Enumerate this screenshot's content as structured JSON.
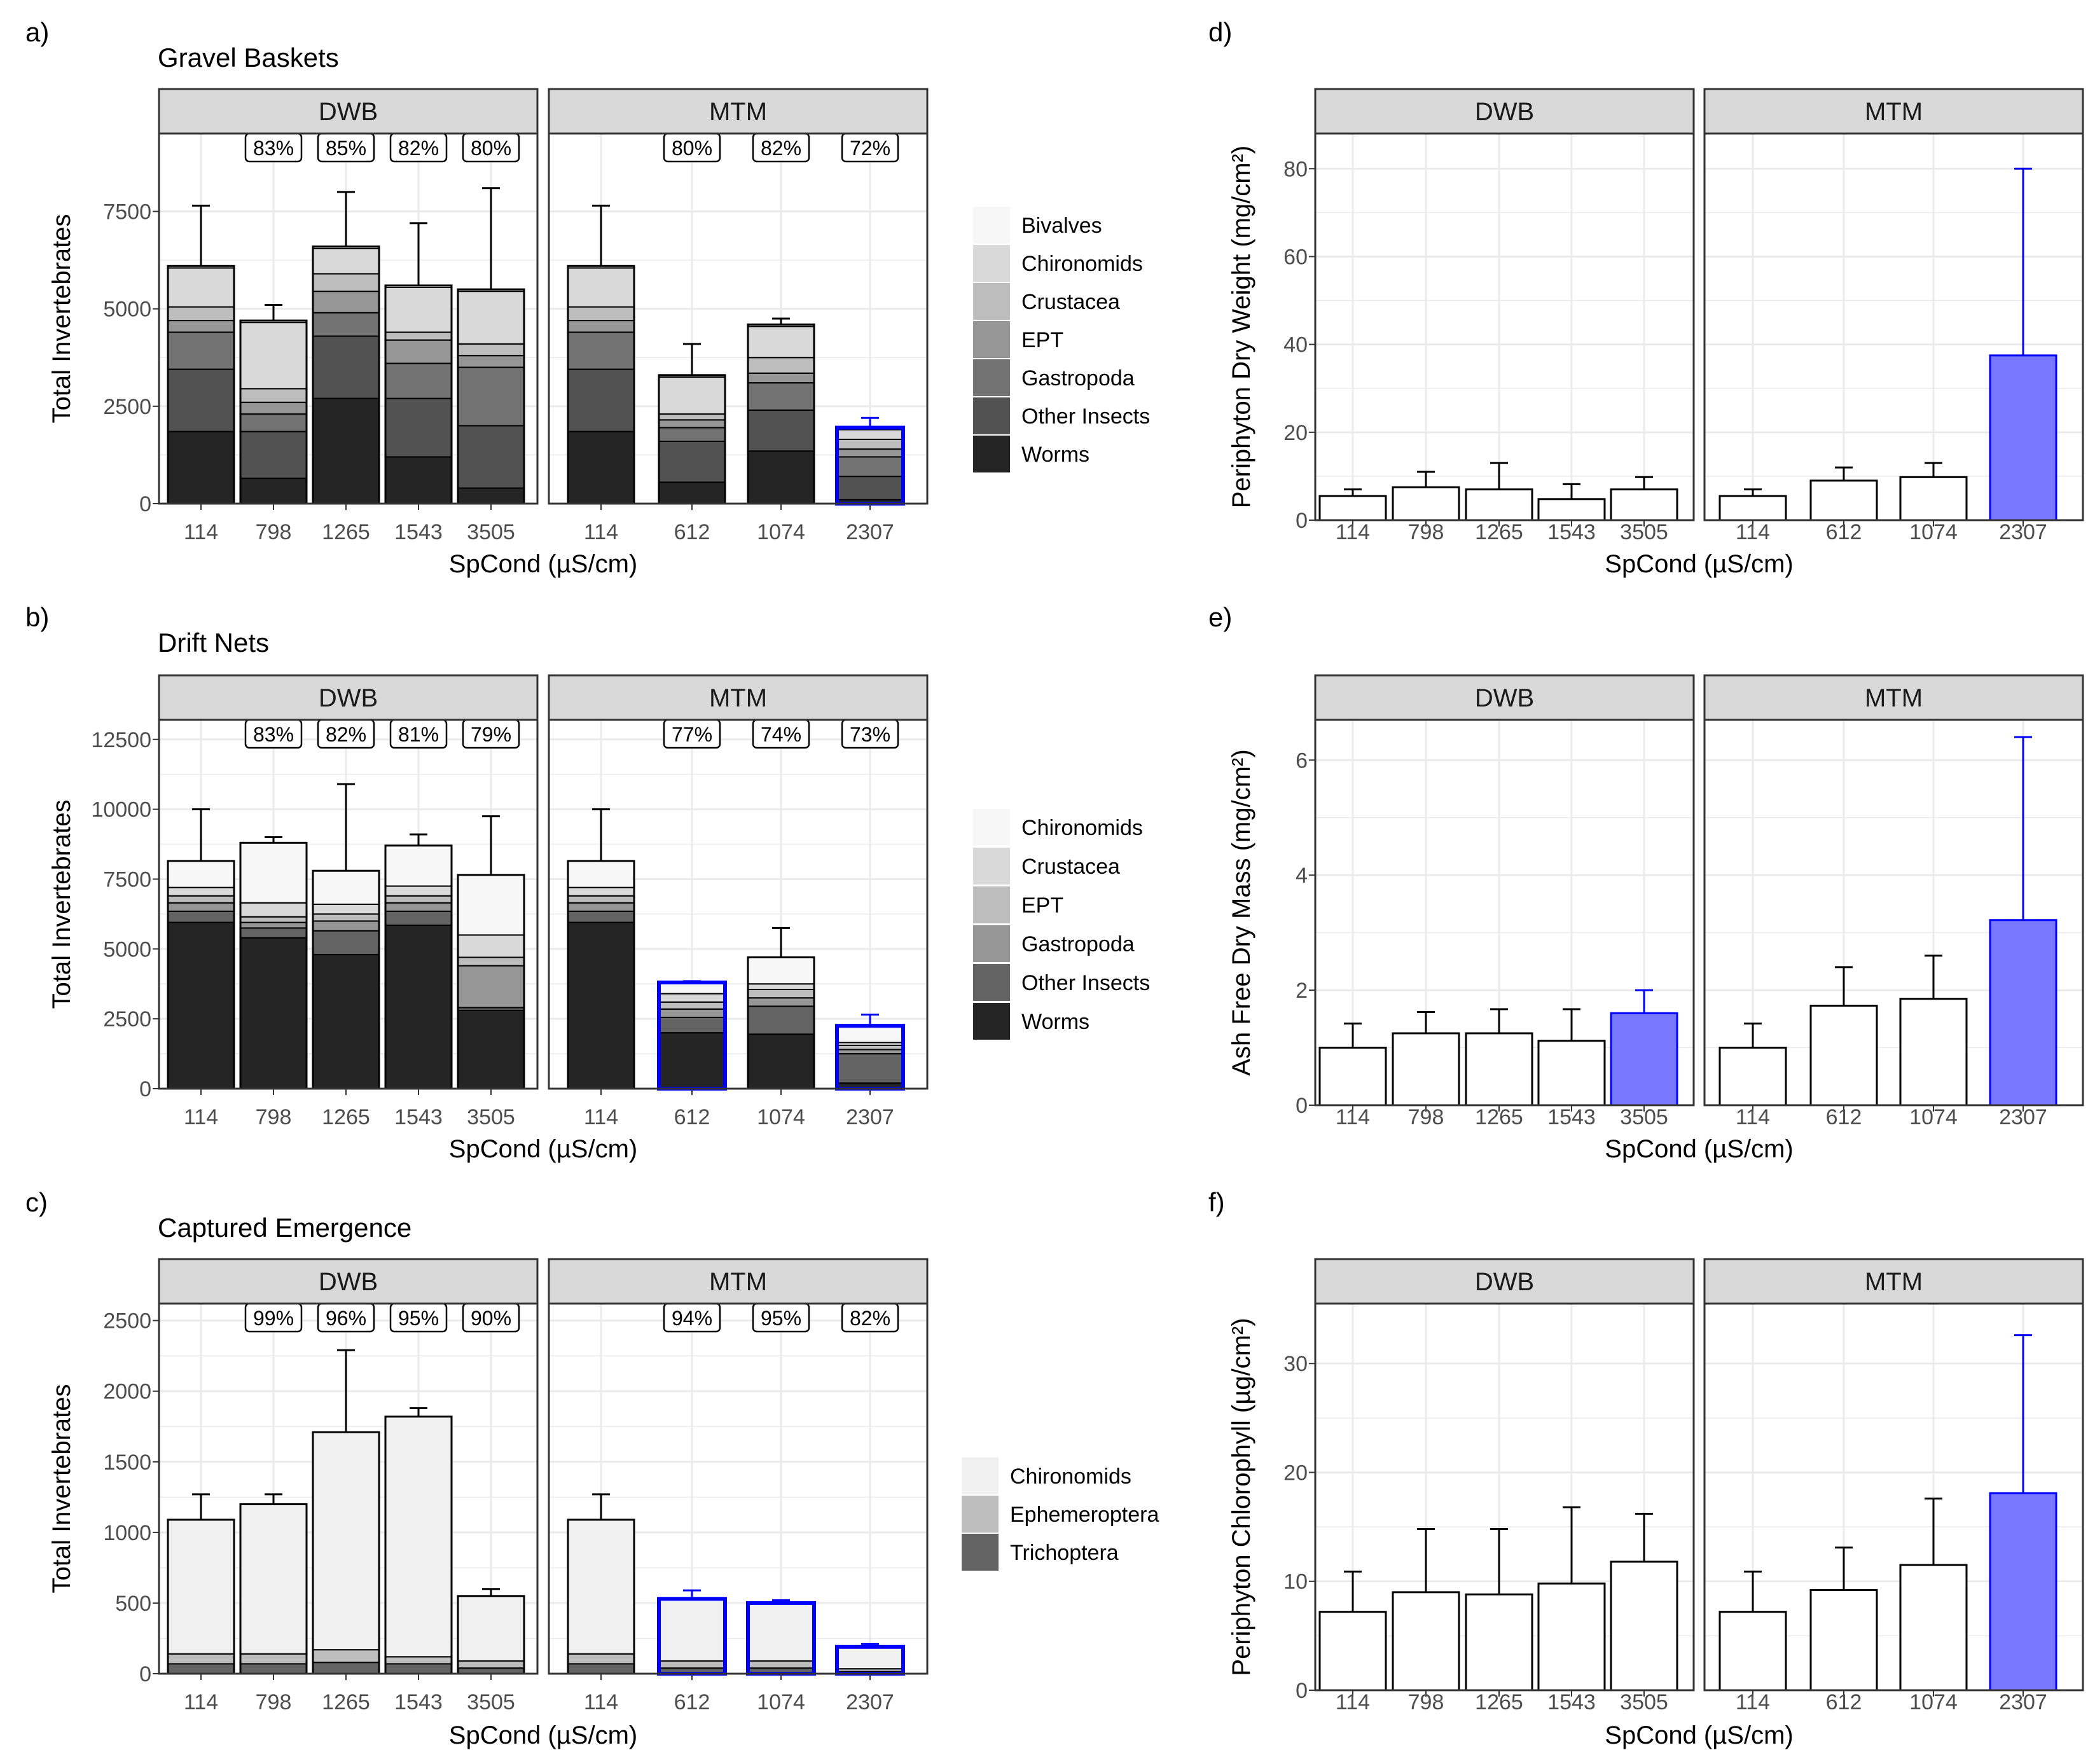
{
  "figure": {
    "xlabel": "SpCond (µS/cm)",
    "facet_labels": [
      "DWB",
      "MTM"
    ],
    "colors": {
      "highlight_outline": "#0000ff",
      "highlight_fill": "#7777ff",
      "strip_bg": "#d9d9d9",
      "grid": "#ebebeb",
      "frame": "#333333"
    }
  },
  "chart_data": [
    {
      "panel": "a)",
      "type": "bar",
      "stacked": true,
      "title": "Gravel Baskets",
      "ylabel": "Total Invertebrates",
      "xlabel": "SpCond (µS/cm)",
      "ylim": [
        0,
        9500
      ],
      "yticks": [
        0,
        2500,
        5000,
        7500
      ],
      "layers": [
        "Worms",
        "Other Insects",
        "Gastropoda",
        "EPT",
        "Crustacea",
        "Chironomids",
        "Bivalves"
      ],
      "legend": [
        "Bivalves",
        "Chironomids",
        "Crustacea",
        "EPT",
        "Gastropoda",
        "Other Insects",
        "Worms"
      ],
      "legend_colors": [
        "#f7f7f7",
        "#d9d9d9",
        "#bdbdbd",
        "#969696",
        "#737373",
        "#525252",
        "#252525"
      ],
      "facets": [
        {
          "name": "DWB",
          "categories": [
            "114",
            "798",
            "1265",
            "1543",
            "3505"
          ],
          "stacks": [
            [
              1850,
              1600,
              950,
              300,
              350,
              1000,
              50
            ],
            [
              650,
              1200,
              450,
              300,
              350,
              1700,
              50
            ],
            [
              2700,
              1600,
              600,
              550,
              450,
              650,
              50
            ],
            [
              1200,
              1500,
              900,
              600,
              200,
              1150,
              50
            ],
            [
              400,
              1600,
              1500,
              300,
              300,
              1350,
              50
            ]
          ],
          "totals": [
            6100,
            4700,
            6600,
            5600,
            5500
          ],
          "errors": [
            7650,
            5100,
            8000,
            7200,
            8100
          ],
          "percents": [
            "",
            "83%",
            "85%",
            "82%",
            "80%"
          ],
          "highlight": [
            false,
            false,
            false,
            false,
            false
          ]
        },
        {
          "name": "MTM",
          "categories": [
            "114",
            "612",
            "1074",
            "2307"
          ],
          "stacks": [
            [
              1850,
              1600,
              950,
              300,
              350,
              1000,
              50
            ],
            [
              550,
              1050,
              350,
              200,
              150,
              950,
              50
            ],
            [
              1350,
              1050,
              700,
              250,
              400,
              800,
              50
            ],
            [
              100,
              600,
              500,
              200,
              250,
              250,
              50
            ]
          ],
          "totals": [
            6100,
            3300,
            4600,
            1950
          ],
          "errors": [
            7650,
            4100,
            4750,
            2200
          ],
          "percents": [
            "",
            "80%",
            "82%",
            "72%"
          ],
          "highlight": [
            false,
            false,
            false,
            true
          ]
        }
      ]
    },
    {
      "panel": "b)",
      "type": "bar",
      "stacked": true,
      "title": "Drift Nets",
      "ylabel": "Total Invertebrates",
      "xlabel": "SpCond (µS/cm)",
      "ylim": [
        0,
        13200
      ],
      "yticks": [
        0,
        2500,
        5000,
        7500,
        10000,
        12500
      ],
      "layers": [
        "Worms",
        "Other Insects",
        "Gastropoda",
        "EPT",
        "Crustacea",
        "Chironomids"
      ],
      "legend": [
        "Chironomids",
        "Crustacea",
        "EPT",
        "Gastropoda",
        "Other Insects",
        "Worms"
      ],
      "legend_colors": [
        "#f7f7f7",
        "#d9d9d9",
        "#bdbdbd",
        "#969696",
        "#636363",
        "#252525"
      ],
      "facets": [
        {
          "name": "DWB",
          "categories": [
            "114",
            "798",
            "1265",
            "1543",
            "3505"
          ],
          "stacks": [
            [
              5950,
              400,
              300,
              250,
              300,
              950
            ],
            [
              5400,
              350,
              200,
              200,
              500,
              2150
            ],
            [
              4800,
              850,
              350,
              250,
              350,
              1200
            ],
            [
              5850,
              500,
              300,
              250,
              350,
              1450
            ],
            [
              2800,
              100,
              1500,
              300,
              800,
              2150
            ]
          ],
          "totals": [
            8150,
            8800,
            7800,
            8700,
            7650
          ],
          "errors": [
            10000,
            9000,
            10900,
            9100,
            9750
          ],
          "percents": [
            "",
            "83%",
            "82%",
            "81%",
            "79%"
          ],
          "highlight": [
            false,
            false,
            false,
            false,
            false
          ]
        },
        {
          "name": "MTM",
          "categories": [
            "114",
            "612",
            "1074",
            "2307"
          ],
          "stacks": [
            [
              5950,
              400,
              300,
              250,
              300,
              950
            ],
            [
              2000,
              550,
              300,
              250,
              300,
              400
            ],
            [
              1950,
              1000,
              300,
              300,
              200,
              950
            ],
            [
              200,
              1050,
              150,
              150,
              100,
              600
            ]
          ],
          "totals": [
            8150,
            3800,
            4700,
            2250
          ],
          "errors": [
            10000,
            3850,
            5750,
            2650
          ],
          "percents": [
            "",
            "77%",
            "74%",
            "73%"
          ],
          "highlight": [
            false,
            true,
            false,
            true
          ]
        }
      ]
    },
    {
      "panel": "c)",
      "type": "bar",
      "stacked": true,
      "title": "Captured Emergence",
      "ylabel": "Total Invertebrates",
      "xlabel": "SpCond (µS/cm)",
      "ylim": [
        0,
        2620
      ],
      "yticks": [
        0,
        500,
        1000,
        1500,
        2000,
        2500
      ],
      "layers": [
        "Trichoptera",
        "Ephemeroptera",
        "Chironomids"
      ],
      "legend": [
        "Chironomids",
        "Ephemeroptera",
        "Trichoptera"
      ],
      "legend_colors": [
        "#f0f0f0",
        "#bdbdbd",
        "#636363"
      ],
      "facets": [
        {
          "name": "DWB",
          "categories": [
            "114",
            "798",
            "1265",
            "1543",
            "3505"
          ],
          "stacks": [
            [
              70,
              70,
              950
            ],
            [
              70,
              70,
              1060
            ],
            [
              80,
              90,
              1540
            ],
            [
              70,
              50,
              1700
            ],
            [
              40,
              50,
              460
            ]
          ],
          "totals": [
            1090,
            1200,
            1710,
            1820,
            550
          ],
          "errors": [
            1270,
            1270,
            2290,
            1880,
            600
          ],
          "percents": [
            "",
            "99%",
            "96%",
            "95%",
            "90%"
          ],
          "highlight": [
            false,
            false,
            false,
            false,
            false
          ]
        },
        {
          "name": "MTM",
          "categories": [
            "114",
            "612",
            "1074",
            "2307"
          ],
          "stacks": [
            [
              70,
              70,
              950
            ],
            [
              40,
              50,
              440
            ],
            [
              40,
              50,
              410
            ],
            [
              15,
              20,
              155
            ]
          ],
          "totals": [
            1090,
            530,
            500,
            190
          ],
          "errors": [
            1270,
            590,
            520,
            210
          ],
          "percents": [
            "",
            "94%",
            "95%",
            "82%"
          ],
          "highlight": [
            false,
            true,
            true,
            true
          ]
        }
      ]
    },
    {
      "panel": "d)",
      "type": "bar",
      "stacked": false,
      "title": "",
      "ylabel": "Periphyton Dry Weight (mg/cm²)",
      "xlabel": "SpCond (µS/cm)",
      "ylim": [
        0,
        88
      ],
      "yticks": [
        0,
        20,
        40,
        60,
        80
      ],
      "facets": [
        {
          "name": "DWB",
          "categories": [
            "114",
            "798",
            "1265",
            "1543",
            "3505"
          ],
          "values": [
            5.5,
            7.5,
            7,
            4.8,
            7
          ],
          "errors": [
            7,
            11,
            13,
            8.2,
            9.8
          ],
          "highlight": [
            false,
            false,
            false,
            false,
            false
          ]
        },
        {
          "name": "MTM",
          "categories": [
            "114",
            "612",
            "1074",
            "2307"
          ],
          "values": [
            5.5,
            9,
            9.8,
            37.5
          ],
          "errors": [
            7,
            12,
            13,
            80
          ],
          "highlight": [
            false,
            false,
            false,
            true
          ]
        }
      ]
    },
    {
      "panel": "e)",
      "type": "bar",
      "stacked": false,
      "title": "",
      "ylabel": "Ash Free Dry Mass (mg/cm²)",
      "xlabel": "SpCond (µS/cm)",
      "ylim": [
        0,
        6.7
      ],
      "yticks": [
        0,
        2,
        4,
        6
      ],
      "facets": [
        {
          "name": "DWB",
          "categories": [
            "114",
            "798",
            "1265",
            "1543",
            "3505"
          ],
          "values": [
            1.0,
            1.25,
            1.25,
            1.12,
            1.6
          ],
          "errors": [
            1.42,
            1.62,
            1.67,
            1.67,
            2.0
          ],
          "highlight": [
            false,
            false,
            false,
            false,
            true
          ]
        },
        {
          "name": "MTM",
          "categories": [
            "114",
            "612",
            "1074",
            "2307"
          ],
          "values": [
            1.0,
            1.73,
            1.85,
            3.22
          ],
          "errors": [
            1.42,
            2.4,
            2.6,
            6.4
          ],
          "highlight": [
            false,
            false,
            false,
            true
          ]
        }
      ]
    },
    {
      "panel": "f)",
      "type": "bar",
      "stacked": false,
      "title": "",
      "ylabel": "Periphyton Chlorophyll (µg/cm²)",
      "xlabel": "SpCond (µS/cm)",
      "ylim": [
        0,
        35.5
      ],
      "yticks": [
        0,
        10,
        20,
        30
      ],
      "facets": [
        {
          "name": "DWB",
          "categories": [
            "114",
            "798",
            "1265",
            "1543",
            "3505"
          ],
          "values": [
            7.2,
            9.0,
            8.8,
            9.8,
            11.8
          ],
          "errors": [
            10.9,
            14.8,
            14.8,
            16.8,
            16.2
          ],
          "highlight": [
            false,
            false,
            false,
            false,
            false
          ]
        },
        {
          "name": "MTM",
          "categories": [
            "114",
            "612",
            "1074",
            "2307"
          ],
          "values": [
            7.2,
            9.2,
            11.5,
            18.1
          ],
          "errors": [
            10.9,
            13.1,
            17.6,
            32.6
          ],
          "highlight": [
            false,
            false,
            false,
            true
          ]
        }
      ]
    }
  ]
}
